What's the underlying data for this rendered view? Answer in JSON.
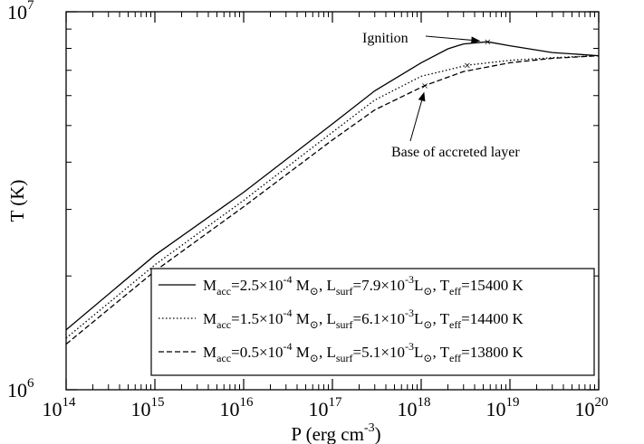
{
  "chart_data": {
    "type": "line",
    "xscale": "log",
    "yscale": "log",
    "xlim": [
      100000000000000.0,
      1e+20
    ],
    "ylim": [
      1000000,
      10000000
    ],
    "grid": false,
    "xlabel": {
      "base": "P (erg cm",
      "sup": "-3",
      "tail": ")"
    },
    "ylabel": "T (K)",
    "x_ticks": [
      {
        "base": "10",
        "exp": "14",
        "value": 100000000000000.0
      },
      {
        "base": "10",
        "exp": "15",
        "value": 1000000000000000.0
      },
      {
        "base": "10",
        "exp": "16",
        "value": 1e+16
      },
      {
        "base": "10",
        "exp": "17",
        "value": 1e+17
      },
      {
        "base": "10",
        "exp": "18",
        "value": 1e+18
      },
      {
        "base": "10",
        "exp": "19",
        "value": 1e+19
      },
      {
        "base": "10",
        "exp": "20",
        "value": 1e+20
      }
    ],
    "y_ticks": [
      {
        "base": "10",
        "exp": "6",
        "value": 1000000
      },
      {
        "base": "10",
        "exp": "7",
        "value": 10000000
      }
    ],
    "legend_position": "bottom-right",
    "series": [
      {
        "style": "solid",
        "legend": {
          "m1": "M",
          "m1sub": "acc",
          "m2": "=2.5×10",
          "m2sup": "-4",
          "m3": " M",
          "m3sub": "⊙",
          "l1": ",  L",
          "l1sub": "surf",
          "l2": "=7.9×10",
          "l2sup": "-3",
          "l3": "L",
          "l3sub": "⊙",
          "t1": ",  T",
          "t1sub": "eff",
          "t2": "=15400 K"
        },
        "x": [
          100000000000000.0,
          1000000000000000.0,
          1e+16,
          1e+17,
          3e+17,
          1e+18,
          2e+18,
          3e+18,
          5.6e+18,
          1e+19,
          3e+19,
          1e+20
        ],
        "y": [
          1440000,
          2270000,
          3330000,
          5050000,
          6180000,
          7330000,
          7980000,
          8220000,
          8330000,
          8130000,
          7800000,
          7650000
        ]
      },
      {
        "style": "dotted",
        "legend": {
          "m1": "M",
          "m1sub": "acc",
          "m2": "=1.5×10",
          "m2sup": "-4",
          "m3": " M",
          "m3sub": "⊙",
          "l1": ",  L",
          "l1sub": "surf",
          "l2": "=6.1×10",
          "l2sup": "-3",
          "l3": "L",
          "l3sub": "⊙",
          "t1": ",  T",
          "t1sub": "eff",
          "t2": "=14400 K"
        },
        "x": [
          100000000000000.0,
          1000000000000000.0,
          1e+16,
          1e+17,
          3e+17,
          1e+18,
          3.3e+18,
          1e+19,
          3e+19,
          1e+20
        ],
        "y": [
          1370000,
          2140000,
          3170000,
          4800000,
          5840000,
          6750000,
          7220000,
          7440000,
          7560000,
          7650000
        ]
      },
      {
        "style": "dashed",
        "legend": {
          "m1": "M",
          "m1sub": "acc",
          "m2": "=0.5×10",
          "m2sup": "-4",
          "m3": " M",
          "m3sub": "⊙",
          "l1": ",  L",
          "l1sub": "surf",
          "l2": "=5.1×10",
          "l2sup": "-3",
          "l3": "L",
          "l3sub": "⊙",
          "t1": ",  T",
          "t1sub": "eff",
          "t2": "=13800 K"
        },
        "x": [
          100000000000000.0,
          1000000000000000.0,
          1e+16,
          1e+17,
          3e+17,
          1.1e+18,
          3e+18,
          1e+19,
          3e+19,
          1e+20
        ],
        "y": [
          1320000,
          2060000,
          3050000,
          4580000,
          5500000,
          6380000,
          6950000,
          7330000,
          7530000,
          7650000
        ]
      }
    ],
    "markers": [
      {
        "x": 5.6e+18,
        "y": 8330000,
        "symbol": "×"
      },
      {
        "x": 3.3e+18,
        "y": 7220000,
        "symbol": "×"
      },
      {
        "x": 1.1e+18,
        "y": 6380000,
        "symbol": "×"
      }
    ],
    "annotations": [
      {
        "text": "Ignition",
        "points_to": {
          "x": 5.6e+18,
          "y": 8330000
        }
      },
      {
        "text": "Base of accreted layer",
        "points_to": {
          "x": 1.1e+18,
          "y": 6380000
        }
      }
    ]
  }
}
